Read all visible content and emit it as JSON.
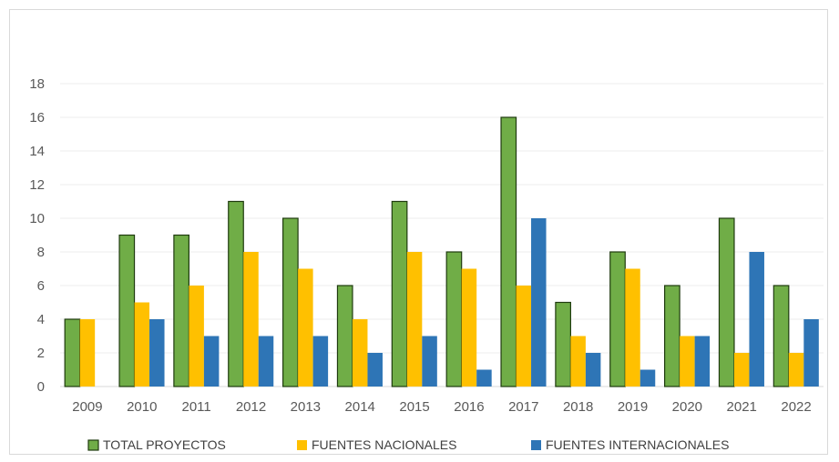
{
  "chart_data": {
    "type": "bar",
    "title": "",
    "xlabel": "",
    "ylabel": "",
    "categories": [
      "2009",
      "2010",
      "2011",
      "2012",
      "2013",
      "2014",
      "2015",
      "2016",
      "2017",
      "2018",
      "2019",
      "2020",
      "2021",
      "2022"
    ],
    "series": [
      {
        "name": "TOTAL PROYECTOS",
        "color": "#70ad47",
        "values": [
          4,
          9,
          9,
          11,
          10,
          6,
          11,
          8,
          16,
          5,
          8,
          6,
          10,
          6
        ]
      },
      {
        "name": "FUENTES NACIONALES",
        "color": "#ffc000",
        "values": [
          4,
          5,
          6,
          8,
          7,
          4,
          8,
          7,
          6,
          3,
          7,
          3,
          2,
          2
        ]
      },
      {
        "name": "FUENTES INTERNACIONALES",
        "color": "#2e75b6",
        "values": [
          0,
          4,
          3,
          3,
          3,
          2,
          3,
          1,
          10,
          2,
          1,
          3,
          8,
          4
        ]
      }
    ],
    "ylim": [
      0,
      18
    ],
    "yticks": [
      0,
      2,
      4,
      6,
      8,
      10,
      12,
      14,
      16,
      18
    ],
    "grid": true,
    "legend_position": "bottom"
  }
}
